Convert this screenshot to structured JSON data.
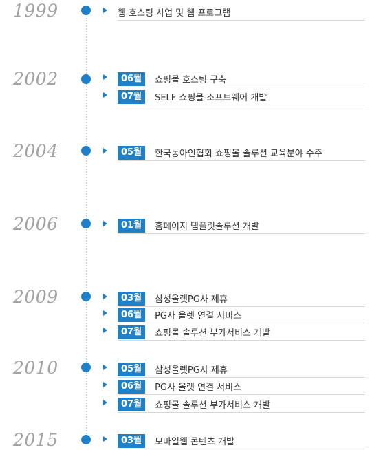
{
  "timeline": [
    {
      "year": "1999",
      "items": [
        {
          "month": "",
          "text": "웹 호스팅 사업 및 웹 프로그램"
        }
      ]
    },
    {
      "year": "2002",
      "items": [
        {
          "month": "06월",
          "text": "쇼핑몰 호스팅 구축"
        },
        {
          "month": "07월",
          "text": "SELF 쇼핑몰 소프트웨어 개발"
        }
      ]
    },
    {
      "year": "2004",
      "items": [
        {
          "month": "05월",
          "text": "한국농아인협회 쇼핑몰 솔루션 교육분야 수주"
        }
      ]
    },
    {
      "year": "2006",
      "items": [
        {
          "month": "01월",
          "text": "홈페이지 템플릿솔루션 개발"
        }
      ]
    },
    {
      "year": "2009",
      "items": [
        {
          "month": "03월",
          "text": "삼성올렛PG사 제휴"
        },
        {
          "month": "06월",
          "text": "PG사 올렛 연결 서비스"
        },
        {
          "month": "07월",
          "text": "쇼핑몰 솔루션 부가서비스 개발"
        }
      ]
    },
    {
      "year": "2010",
      "items": [
        {
          "month": "05월",
          "text": "삼성올렛PG사 제휴"
        },
        {
          "month": "06월",
          "text": "PG사 올렛 연결 서비스"
        },
        {
          "month": "07월",
          "text": "쇼핑몰 솔루션 부가서비스 개발"
        }
      ]
    },
    {
      "year": "2015",
      "items": [
        {
          "month": "03월",
          "text": "모바일웹 콘텐츠 개발"
        }
      ]
    }
  ]
}
